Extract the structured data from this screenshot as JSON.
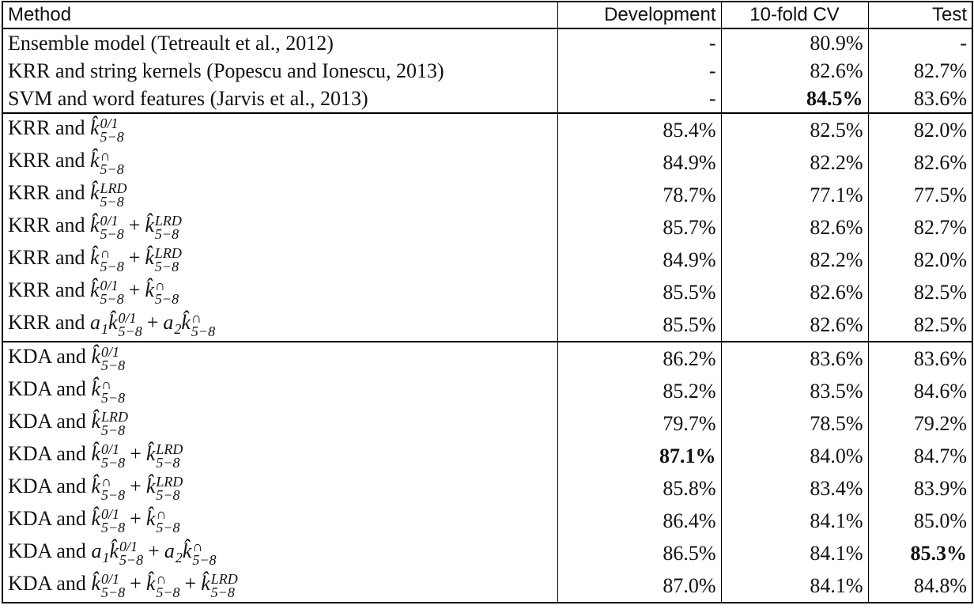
{
  "table": {
    "header": [
      "Method",
      "Development",
      "10-fold CV",
      "Test"
    ],
    "groups": [
      {
        "rows": [
          {
            "method": [
              "Ensemble model (Tetreault et al., 2012)"
            ],
            "cells": [
              "-",
              "80.9%",
              "-"
            ]
          },
          {
            "method": [
              "KRR and string kernels (Popescu and Ionescu, 2013)"
            ],
            "cells": [
              "-",
              "82.6%",
              "82.7%"
            ]
          },
          {
            "method": [
              "SVM and word features (Jarvis et al., 2013)"
            ],
            "cells": [
              "-",
              {
                "text": "84.5%",
                "bold": true
              },
              "83.6%"
            ]
          }
        ]
      },
      {
        "rows": [
          {
            "method": [
              "KRR and",
              {
                "base": "k̂",
                "sup": "0/1",
                "sub": "5−8"
              }
            ],
            "cells": [
              "85.4%",
              "82.5%",
              "82.0%"
            ]
          },
          {
            "method": [
              "KRR and",
              {
                "base": "k̂",
                "sup": "∩",
                "sub": "5−8"
              }
            ],
            "cells": [
              "84.9%",
              "82.2%",
              "82.6%"
            ]
          },
          {
            "method": [
              "KRR and",
              {
                "base": "k̂",
                "sup": "LRD",
                "sub": "5−8"
              }
            ],
            "cells": [
              "78.7%",
              "77.1%",
              "77.5%"
            ]
          },
          {
            "method": [
              "KRR and",
              {
                "base": "k̂",
                "sup": "0/1",
                "sub": "5−8"
              },
              "+",
              {
                "base": "k̂",
                "sup": "LRD",
                "sub": "5−8"
              }
            ],
            "cells": [
              "85.7%",
              "82.6%",
              "82.7%"
            ]
          },
          {
            "method": [
              "KRR and",
              {
                "base": "k̂",
                "sup": "∩",
                "sub": "5−8"
              },
              "+",
              {
                "base": "k̂",
                "sup": "LRD",
                "sub": "5−8"
              }
            ],
            "cells": [
              "84.9%",
              "82.2%",
              "82.0%"
            ]
          },
          {
            "method": [
              "KRR and",
              {
                "base": "k̂",
                "sup": "0/1",
                "sub": "5−8"
              },
              "+",
              {
                "base": "k̂",
                "sup": "∩",
                "sub": "5−8"
              }
            ],
            "cells": [
              "85.5%",
              "82.6%",
              "82.5%"
            ]
          },
          {
            "method": [
              "KRR and",
              {
                "base": "a",
                "sub": "1"
              },
              {
                "base": "k̂",
                "sup": "0/1",
                "sub": "5−8"
              },
              "+",
              {
                "base": "a",
                "sub": "2"
              },
              {
                "base": "k̂",
                "sup": "∩",
                "sub": "5−8"
              }
            ],
            "cells": [
              "85.5%",
              "82.6%",
              "82.5%"
            ]
          }
        ]
      },
      {
        "rows": [
          {
            "method": [
              "KDA and",
              {
                "base": "k̂",
                "sup": "0/1",
                "sub": "5−8"
              }
            ],
            "cells": [
              "86.2%",
              "83.6%",
              "83.6%"
            ]
          },
          {
            "method": [
              "KDA and",
              {
                "base": "k̂",
                "sup": "∩",
                "sub": "5−8"
              }
            ],
            "cells": [
              "85.2%",
              "83.5%",
              "84.6%"
            ]
          },
          {
            "method": [
              "KDA and",
              {
                "base": "k̂",
                "sup": "LRD",
                "sub": "5−8"
              }
            ],
            "cells": [
              "79.7%",
              "78.5%",
              "79.2%"
            ]
          },
          {
            "method": [
              "KDA and",
              {
                "base": "k̂",
                "sup": "0/1",
                "sub": "5−8"
              },
              "+",
              {
                "base": "k̂",
                "sup": "LRD",
                "sub": "5−8"
              }
            ],
            "cells": [
              {
                "text": "87.1%",
                "bold": true
              },
              "84.0%",
              "84.7%"
            ]
          },
          {
            "method": [
              "KDA and",
              {
                "base": "k̂",
                "sup": "∩",
                "sub": "5−8"
              },
              "+",
              {
                "base": "k̂",
                "sup": "LRD",
                "sub": "5−8"
              }
            ],
            "cells": [
              "85.8%",
              "83.4%",
              "83.9%"
            ]
          },
          {
            "method": [
              "KDA and",
              {
                "base": "k̂",
                "sup": "0/1",
                "sub": "5−8"
              },
              "+",
              {
                "base": "k̂",
                "sup": "∩",
                "sub": "5−8"
              }
            ],
            "cells": [
              "86.4%",
              "84.1%",
              "85.0%"
            ]
          },
          {
            "method": [
              "KDA and",
              {
                "base": "a",
                "sub": "1"
              },
              {
                "base": "k̂",
                "sup": "0/1",
                "sub": "5−8"
              },
              "+",
              {
                "base": "a",
                "sub": "2"
              },
              {
                "base": "k̂",
                "sup": "∩",
                "sub": "5−8"
              }
            ],
            "cells": [
              "86.5%",
              "84.1%",
              {
                "text": "85.3%",
                "bold": true
              }
            ]
          },
          {
            "method": [
              "KDA and",
              {
                "base": "k̂",
                "sup": "0/1",
                "sub": "5−8"
              },
              "+",
              {
                "base": "k̂",
                "sup": "∩",
                "sub": "5−8"
              },
              "+",
              {
                "base": "k̂",
                "sup": "LRD",
                "sub": "5−8"
              }
            ],
            "cells": [
              "87.0%",
              "84.1%",
              "84.8%"
            ]
          }
        ]
      }
    ]
  }
}
